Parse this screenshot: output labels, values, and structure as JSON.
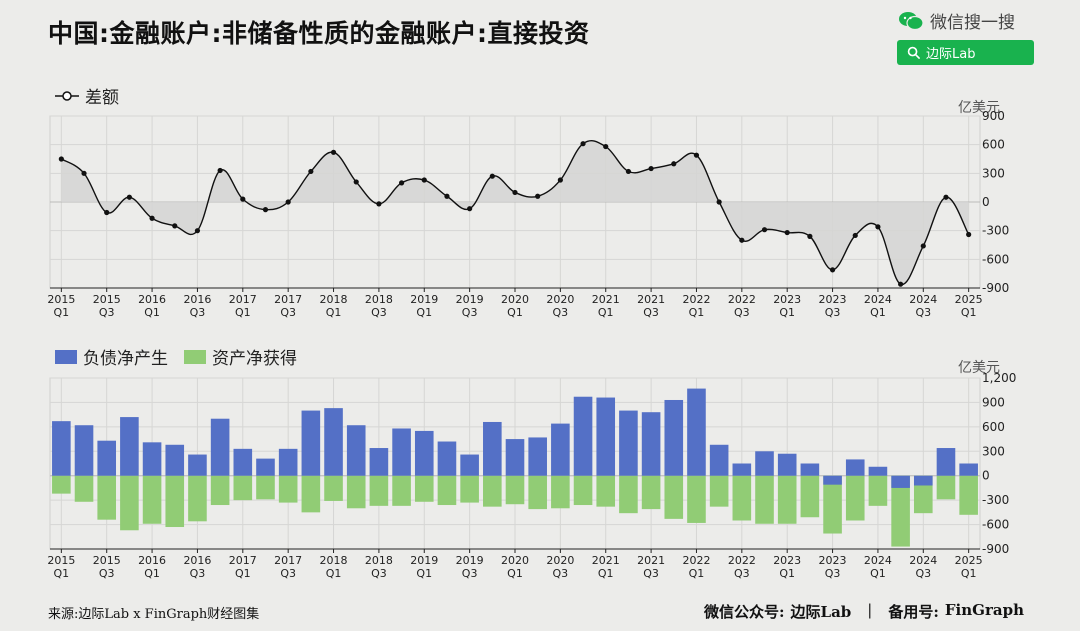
{
  "title": "中国:金融账户:非储备性质的金融账户:直接投资",
  "wechat_search": {
    "label": "微信搜一搜",
    "query": "边际Lab",
    "icon": "search-icon"
  },
  "top_chart": {
    "legend": "差额",
    "unit": "亿美元"
  },
  "bottom_chart": {
    "legend_liab": "负债净产生",
    "legend_asset": "资产净获得",
    "unit": "亿美元"
  },
  "colors": {
    "liab": "#5470c6",
    "asset": "#91cc75",
    "line": "#111111",
    "area": "#d5d5d3",
    "background": "#ececea"
  },
  "footer": {
    "source": "来源:边际Lab x FinGraph财经图集",
    "wechat": "微信公众号:",
    "wechat_name": "边际Lab",
    "sep": "|",
    "backup": "备用号:",
    "backup_name": "FinGraph"
  },
  "chart_data": [
    {
      "type": "line",
      "x": [
        "2015Q1",
        "2015Q2",
        "2015Q3",
        "2015Q4",
        "2016Q1",
        "2016Q2",
        "2016Q3",
        "2016Q4",
        "2017Q1",
        "2017Q2",
        "2017Q3",
        "2017Q4",
        "2018Q1",
        "2018Q2",
        "2018Q3",
        "2018Q4",
        "2019Q1",
        "2019Q2",
        "2019Q3",
        "2019Q4",
        "2020Q1",
        "2020Q2",
        "2020Q3",
        "2020Q4",
        "2021Q1",
        "2021Q2",
        "2021Q3",
        "2021Q4",
        "2022Q1",
        "2022Q2",
        "2022Q3",
        "2022Q4",
        "2023Q1",
        "2023Q2",
        "2023Q3",
        "2023Q4",
        "2024Q1",
        "2024Q2",
        "2024Q3",
        "2024Q4",
        "2025Q1"
      ],
      "series": [
        {
          "name": "差额",
          "values": [
            450,
            300,
            -110,
            50,
            -170,
            -250,
            -300,
            330,
            30,
            -80,
            0,
            320,
            520,
            210,
            -20,
            200,
            230,
            60,
            -70,
            270,
            100,
            60,
            230,
            610,
            580,
            320,
            350,
            400,
            490,
            0,
            -400,
            -290,
            -320,
            -360,
            -710,
            -350,
            -260,
            -860,
            -460,
            50,
            -340
          ]
        }
      ],
      "ylim": [
        -900,
        900
      ],
      "yticks": [
        -900,
        -600,
        -300,
        0,
        300,
        600,
        900
      ],
      "xtick_labels": [
        [
          "2015",
          "Q1"
        ],
        [
          "2015",
          "Q3"
        ],
        [
          "2016",
          "Q1"
        ],
        [
          "2016",
          "Q3"
        ],
        [
          "2017",
          "Q1"
        ],
        [
          "2017",
          "Q3"
        ],
        [
          "2018",
          "Q1"
        ],
        [
          "2018",
          "Q3"
        ],
        [
          "2019",
          "Q1"
        ],
        [
          "2019",
          "Q3"
        ],
        [
          "2020",
          "Q1"
        ],
        [
          "2020",
          "Q3"
        ],
        [
          "2021",
          "Q1"
        ],
        [
          "2021",
          "Q3"
        ],
        [
          "2022",
          "Q1"
        ],
        [
          "2022",
          "Q3"
        ],
        [
          "2023",
          "Q1"
        ],
        [
          "2023",
          "Q3"
        ],
        [
          "2024",
          "Q1"
        ],
        [
          "2024",
          "Q3"
        ],
        [
          "2025",
          "Q1"
        ]
      ],
      "ylabel": "亿美元",
      "grid": true
    },
    {
      "type": "bar",
      "x": [
        "2015Q1",
        "2015Q2",
        "2015Q3",
        "2015Q4",
        "2016Q1",
        "2016Q2",
        "2016Q3",
        "2016Q4",
        "2017Q1",
        "2017Q2",
        "2017Q3",
        "2017Q4",
        "2018Q1",
        "2018Q2",
        "2018Q3",
        "2018Q4",
        "2019Q1",
        "2019Q2",
        "2019Q3",
        "2019Q4",
        "2020Q1",
        "2020Q2",
        "2020Q3",
        "2020Q4",
        "2021Q1",
        "2021Q2",
        "2021Q3",
        "2021Q4",
        "2022Q1",
        "2022Q2",
        "2022Q3",
        "2022Q4",
        "2023Q1",
        "2023Q2",
        "2023Q3",
        "2023Q4",
        "2024Q1",
        "2024Q2",
        "2024Q3",
        "2024Q4",
        "2025Q1"
      ],
      "series": [
        {
          "name": "负债净产生",
          "values": [
            670,
            620,
            430,
            720,
            410,
            380,
            260,
            700,
            330,
            210,
            330,
            800,
            830,
            620,
            340,
            580,
            550,
            420,
            260,
            660,
            450,
            470,
            640,
            970,
            960,
            800,
            780,
            930,
            1070,
            380,
            150,
            300,
            270,
            150,
            -110,
            200,
            110,
            -150,
            -120,
            340,
            150
          ]
        },
        {
          "name": "资产净获得",
          "values": [
            -220,
            -320,
            -540,
            -670,
            -590,
            -630,
            -560,
            -360,
            -300,
            -290,
            -330,
            -450,
            -310,
            -400,
            -370,
            -370,
            -320,
            -360,
            -330,
            -380,
            -350,
            -410,
            -400,
            -360,
            -380,
            -460,
            -410,
            -530,
            -580,
            -380,
            -550,
            -590,
            -590,
            -510,
            -710,
            -550,
            -370,
            -870,
            -460,
            -290,
            -480
          ]
        }
      ],
      "ylim": [
        -900,
        1200
      ],
      "yticks": [
        -900,
        -600,
        -300,
        0,
        300,
        600,
        900,
        1200
      ],
      "xtick_labels": [
        [
          "2015",
          "Q1"
        ],
        [
          "2015",
          "Q3"
        ],
        [
          "2016",
          "Q1"
        ],
        [
          "2016",
          "Q3"
        ],
        [
          "2017",
          "Q1"
        ],
        [
          "2017",
          "Q3"
        ],
        [
          "2018",
          "Q1"
        ],
        [
          "2018",
          "Q3"
        ],
        [
          "2019",
          "Q1"
        ],
        [
          "2019",
          "Q3"
        ],
        [
          "2020",
          "Q1"
        ],
        [
          "2020",
          "Q3"
        ],
        [
          "2021",
          "Q1"
        ],
        [
          "2021",
          "Q3"
        ],
        [
          "2022",
          "Q1"
        ],
        [
          "2022",
          "Q3"
        ],
        [
          "2023",
          "Q1"
        ],
        [
          "2023",
          "Q3"
        ],
        [
          "2024",
          "Q1"
        ],
        [
          "2024",
          "Q3"
        ],
        [
          "2025",
          "Q1"
        ]
      ],
      "ylabel": "亿美元",
      "grid": true
    }
  ]
}
